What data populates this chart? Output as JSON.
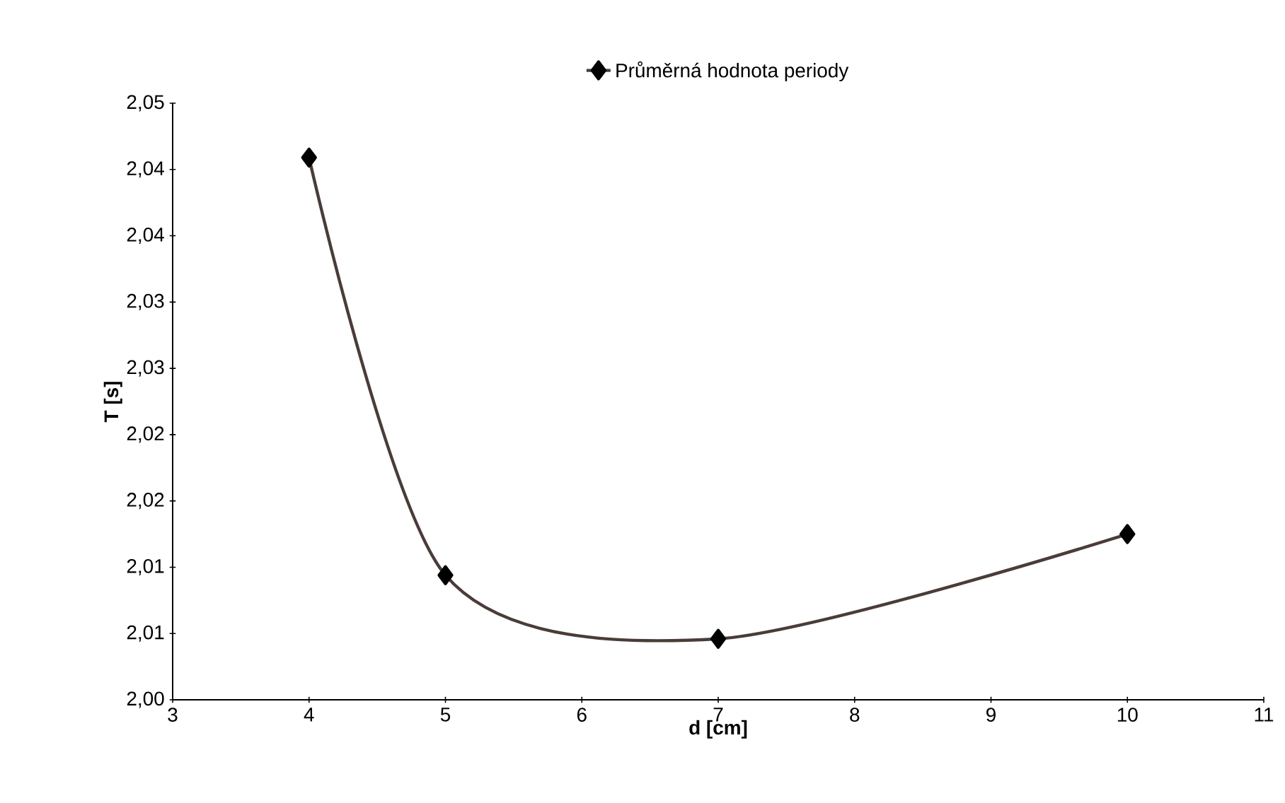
{
  "chart_data": {
    "type": "line",
    "xlabel": "d [cm]",
    "ylabel": "T [s]",
    "series": [
      {
        "name": "Průměrná hodnota periody",
        "color": "#4a3c38",
        "x": [
          4,
          5,
          7,
          10
        ],
        "values": [
          2.0409,
          2.0094,
          2.0046,
          2.0125
        ]
      }
    ],
    "xlim": [
      3,
      11
    ],
    "xticks": [
      3,
      4,
      5,
      6,
      7,
      8,
      9,
      10,
      11
    ],
    "ylim": [
      2.0,
      2.045
    ],
    "yticks": [
      {
        "value": 2.0,
        "label": "2,00"
      },
      {
        "value": 2.005,
        "label": "2,01"
      },
      {
        "value": 2.01,
        "label": "2,01"
      },
      {
        "value": 2.015,
        "label": "2,02"
      },
      {
        "value": 2.02,
        "label": "2,02"
      },
      {
        "value": 2.025,
        "label": "2,03"
      },
      {
        "value": 2.03,
        "label": "2,03"
      },
      {
        "value": 2.035,
        "label": "2,04"
      },
      {
        "value": 2.04,
        "label": "2,04"
      },
      {
        "value": 2.045,
        "label": "2,05"
      }
    ],
    "grid": false,
    "legend": "top",
    "marker": "diamond",
    "line_style": "solid"
  }
}
